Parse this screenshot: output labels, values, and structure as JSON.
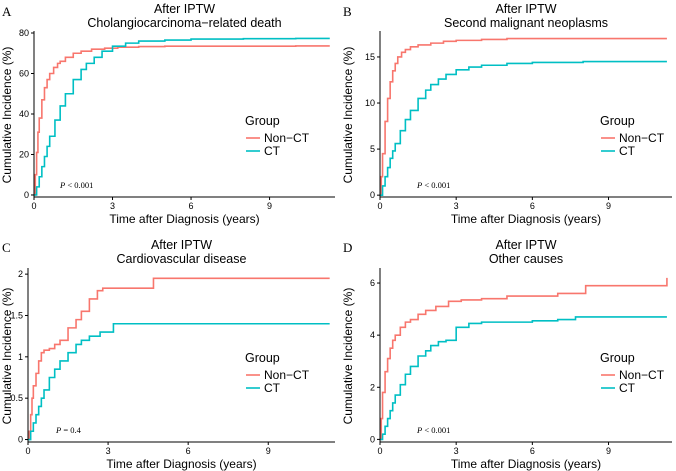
{
  "colors": {
    "non_ct": "#F8766D",
    "ct": "#00BFC4"
  },
  "chart_data": [
    {
      "type": "line",
      "panel": "A",
      "title": "After IPTW",
      "subtitle": "Cholangiocarcinoma−related death",
      "xlabel": "Time after Diagnosis (years)",
      "ylabel": "Cumulative Incidence (%)",
      "xlim": [
        0,
        11.5
      ],
      "ylim": [
        -1,
        80
      ],
      "xticks": [
        0,
        3,
        6,
        9
      ],
      "xtick_labels": [
        "0",
        "3",
        "6",
        "9"
      ],
      "yticks": [
        0,
        20,
        40,
        60,
        80
      ],
      "ytick_labels": [
        "0",
        "20",
        "40",
        "60",
        "80"
      ],
      "legend_title": "Group",
      "p_value": "P < 0.001",
      "p_prefix": "P",
      "p_suffix": " < 0.001",
      "series": [
        {
          "name": "Non−CT",
          "color_key": "non_ct",
          "x": [
            0,
            0.05,
            0.1,
            0.15,
            0.2,
            0.3,
            0.4,
            0.5,
            0.6,
            0.75,
            0.9,
            1.0,
            1.2,
            1.5,
            1.8,
            2.2,
            2.7,
            3.2,
            4,
            5,
            6,
            8,
            10,
            11.3
          ],
          "y": [
            0,
            10,
            21,
            31,
            38,
            47,
            53,
            57,
            60,
            63,
            65,
            66,
            68,
            70,
            71,
            72,
            72.5,
            73,
            73.3,
            73.5,
            73.5,
            73.5,
            73.6,
            73.6
          ]
        },
        {
          "name": "CT",
          "color_key": "ct",
          "x": [
            0,
            0.1,
            0.2,
            0.3,
            0.4,
            0.5,
            0.6,
            0.8,
            1.0,
            1.2,
            1.5,
            1.8,
            2.0,
            2.3,
            2.6,
            3.0,
            3.5,
            4,
            5,
            6,
            8,
            10,
            11.3
          ],
          "y": [
            0,
            4,
            9,
            14,
            19,
            24,
            29,
            37,
            44,
            50,
            57,
            62,
            65,
            68,
            71,
            73.5,
            75,
            76,
            76.5,
            77,
            77.2,
            77.3,
            77.3
          ]
        }
      ]
    },
    {
      "type": "line",
      "panel": "B",
      "title": "After IPTW",
      "subtitle": "Second malignant neoplasms",
      "xlabel": "Time after Diagnosis (years)",
      "ylabel": "Cumulative Incidence (%)",
      "xlim": [
        0,
        11.5
      ],
      "ylim": [
        -0.2,
        17.6
      ],
      "xticks": [
        0,
        3,
        6,
        9
      ],
      "xtick_labels": [
        "0",
        "3",
        "6",
        "9"
      ],
      "yticks": [
        0,
        5,
        10,
        15
      ],
      "ytick_labels": [
        "0",
        "5",
        "10",
        "15"
      ],
      "legend_title": "Group",
      "p_value": "P < 0.001",
      "p_prefix": "P",
      "p_suffix": " < 0.001",
      "series": [
        {
          "name": "Non−CT",
          "color_key": "non_ct",
          "x": [
            0,
            0.05,
            0.1,
            0.2,
            0.3,
            0.4,
            0.5,
            0.6,
            0.7,
            0.85,
            1.0,
            1.2,
            1.5,
            2.0,
            2.5,
            3.0,
            4,
            5,
            6,
            8,
            10,
            11.3
          ],
          "y": [
            0,
            2,
            4.5,
            8,
            10.5,
            12.3,
            13.5,
            14.3,
            15,
            15.5,
            15.8,
            16.1,
            16.3,
            16.5,
            16.7,
            16.8,
            16.9,
            17,
            17,
            17,
            17,
            17
          ]
        },
        {
          "name": "CT",
          "color_key": "ct",
          "x": [
            0,
            0.1,
            0.2,
            0.3,
            0.4,
            0.5,
            0.6,
            0.8,
            1.0,
            1.2,
            1.5,
            1.8,
            2.0,
            2.3,
            2.6,
            3.0,
            3.5,
            4,
            5,
            6,
            8,
            10,
            11.3
          ],
          "y": [
            0,
            1,
            2,
            3,
            4,
            4.8,
            5.6,
            7,
            8.2,
            9.2,
            10.5,
            11.4,
            12,
            12.6,
            13.1,
            13.6,
            13.9,
            14.1,
            14.3,
            14.4,
            14.5,
            14.5,
            14.5
          ]
        }
      ]
    },
    {
      "type": "line",
      "panel": "C",
      "title": "After IPTW",
      "subtitle": "Cardiovascular disease",
      "xlabel": "Time after Diagnosis (years)",
      "ylabel": "Cumulative Incidence (%)",
      "xlim": [
        0,
        11.5
      ],
      "ylim": [
        -0.03,
        2.05
      ],
      "xticks": [
        0,
        3,
        6,
        9
      ],
      "xtick_labels": [
        "0",
        "3",
        "6",
        "9"
      ],
      "yticks": [
        0,
        0.5,
        1,
        1.5,
        2
      ],
      "ytick_labels": [
        "0",
        "0.5",
        "1",
        "1.5",
        "2"
      ],
      "legend_title": "Group",
      "p_value": "P = 0.4",
      "p_prefix": "P",
      "p_suffix": " = 0.4",
      "series": [
        {
          "name": "Non−CT",
          "color_key": "non_ct",
          "x": [
            0,
            0.05,
            0.1,
            0.15,
            0.2,
            0.3,
            0.4,
            0.5,
            0.6,
            0.8,
            1.0,
            1.2,
            1.5,
            1.8,
            2.0,
            2.3,
            2.6,
            2.8,
            4.7,
            11.3
          ],
          "y": [
            0,
            0.1,
            0.3,
            0.5,
            0.65,
            0.8,
            0.95,
            1.05,
            1.08,
            1.1,
            1.15,
            1.2,
            1.35,
            1.45,
            1.55,
            1.7,
            1.8,
            1.83,
            1.95,
            1.95
          ]
        },
        {
          "name": "CT",
          "color_key": "ct",
          "x": [
            0,
            0.1,
            0.2,
            0.3,
            0.4,
            0.5,
            0.6,
            0.8,
            1.0,
            1.2,
            1.5,
            1.8,
            2.0,
            2.3,
            2.7,
            3.2,
            11.3
          ],
          "y": [
            0,
            0.1,
            0.2,
            0.3,
            0.4,
            0.5,
            0.6,
            0.75,
            0.85,
            0.95,
            1.05,
            1.15,
            1.2,
            1.25,
            1.3,
            1.4,
            1.4
          ]
        }
      ]
    },
    {
      "type": "line",
      "panel": "D",
      "title": "After IPTW",
      "subtitle": "Other causes",
      "xlabel": "Time after Diagnosis (years)",
      "ylabel": "Cumulative Incidence (%)",
      "xlim": [
        0,
        11.5
      ],
      "ylim": [
        -0.1,
        6.5
      ],
      "xticks": [
        0,
        3,
        6,
        9
      ],
      "xtick_labels": [
        "0",
        "3",
        "6",
        "9"
      ],
      "yticks": [
        0,
        2,
        4,
        6
      ],
      "ytick_labels": [
        "0",
        "2",
        "4",
        "6"
      ],
      "legend_title": "Group",
      "p_value": "P < 0.001",
      "p_prefix": "P",
      "p_suffix": " < 0.001",
      "series": [
        {
          "name": "Non−CT",
          "color_key": "non_ct",
          "x": [
            0,
            0.05,
            0.1,
            0.2,
            0.3,
            0.4,
            0.5,
            0.6,
            0.8,
            1.0,
            1.2,
            1.5,
            1.8,
            2.2,
            2.7,
            3.2,
            4,
            5,
            6,
            7,
            8,
            8.1,
            11.2,
            11.3
          ],
          "y": [
            0,
            0.8,
            1.8,
            2.6,
            3.1,
            3.5,
            3.8,
            4.0,
            4.3,
            4.5,
            4.6,
            4.8,
            4.95,
            5.1,
            5.3,
            5.35,
            5.4,
            5.5,
            5.5,
            5.6,
            5.6,
            5.9,
            5.9,
            6.2
          ]
        },
        {
          "name": "CT",
          "color_key": "ct",
          "x": [
            0,
            0.1,
            0.2,
            0.3,
            0.4,
            0.5,
            0.6,
            0.8,
            1.0,
            1.2,
            1.5,
            1.8,
            2.0,
            2.3,
            2.6,
            3.0,
            3.5,
            4,
            5,
            6,
            7,
            7.7,
            11.3
          ],
          "y": [
            0,
            0.2,
            0.5,
            0.8,
            1.1,
            1.4,
            1.7,
            2.1,
            2.5,
            2.8,
            3.2,
            3.4,
            3.6,
            3.75,
            3.8,
            4.3,
            4.45,
            4.5,
            4.5,
            4.55,
            4.6,
            4.7,
            4.7
          ]
        }
      ]
    }
  ]
}
